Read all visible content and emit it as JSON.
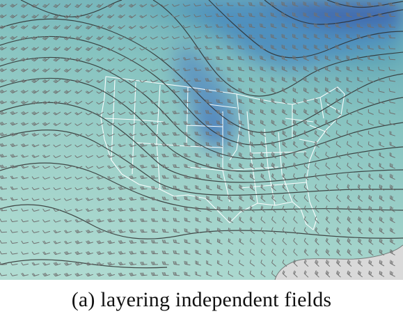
{
  "figure": {
    "caption": "(a) layering independent fields"
  },
  "map": {
    "region": "United States",
    "layers": [
      "scalar-field-shading",
      "contour-lines",
      "wind-barbs",
      "state-boundaries"
    ],
    "colors": {
      "shade_light": "#a9d8cf",
      "shade_mid": "#7fc0bd",
      "shade_teal": "#5fa7b4",
      "shade_blue": "#4f8cbc",
      "shade_dark": "#3b64ad",
      "land_gray": "#d8d8d8",
      "contour": "#333333",
      "barb": "#707070",
      "boundary": "#ffffff"
    }
  }
}
